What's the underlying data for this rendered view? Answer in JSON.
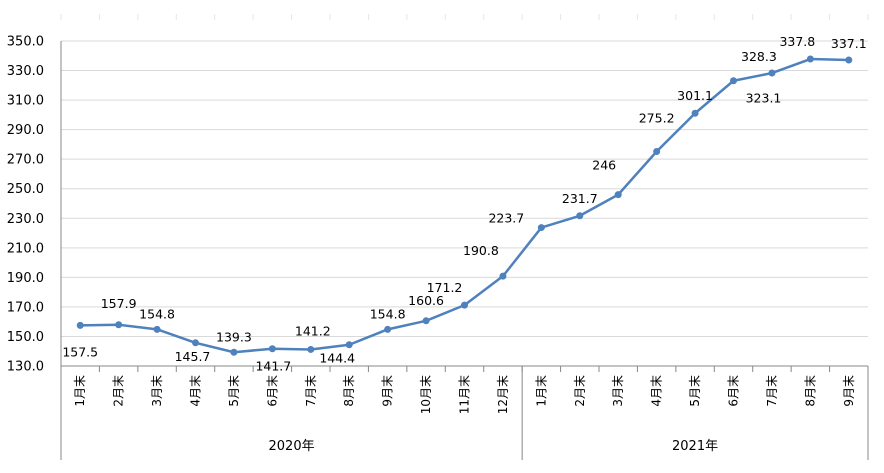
{
  "chart_data": {
    "type": "line",
    "categories": [
      "1月末",
      "2月末",
      "3月末",
      "4月末",
      "5月末",
      "6月末",
      "7月末",
      "8月末",
      "9月末",
      "10月末",
      "11月末",
      "12月末",
      "1月末",
      "2月末",
      "3月末",
      "4月末",
      "5月末",
      "6月末",
      "7月末",
      "8月末",
      "9月末"
    ],
    "groups": [
      {
        "label": "2020年",
        "count": 12
      },
      {
        "label": "2021年",
        "count": 9
      }
    ],
    "series": [
      {
        "values": [
          157.5,
          157.9,
          154.8,
          145.7,
          139.3,
          141.7,
          141.2,
          144.4,
          154.8,
          160.6,
          171.2,
          190.8,
          223.7,
          231.7,
          246,
          275.2,
          301.1,
          323.1,
          328.3,
          337.8,
          337.1
        ],
        "data_labels": [
          "157.5",
          "157.9",
          "154.8",
          "145.7",
          "139.3",
          "141.7",
          "141.2",
          "144.4",
          "154.8",
          "160.6",
          "171.2",
          "190.8",
          "223.7",
          "231.7",
          "246",
          "275.2",
          "301.1",
          "323.1",
          "328.3",
          "337.8",
          "337.1"
        ],
        "color": "#4F81BD"
      }
    ],
    "y_ticks": [
      "130.0",
      "150.0",
      "170.0",
      "190.0",
      "210.0",
      "230.0",
      "250.0",
      "270.0",
      "290.0",
      "310.0",
      "330.0",
      "350.0"
    ],
    "ylim": [
      130,
      350
    ],
    "grid": true,
    "title": "",
    "xlabel": "",
    "ylabel": ""
  }
}
